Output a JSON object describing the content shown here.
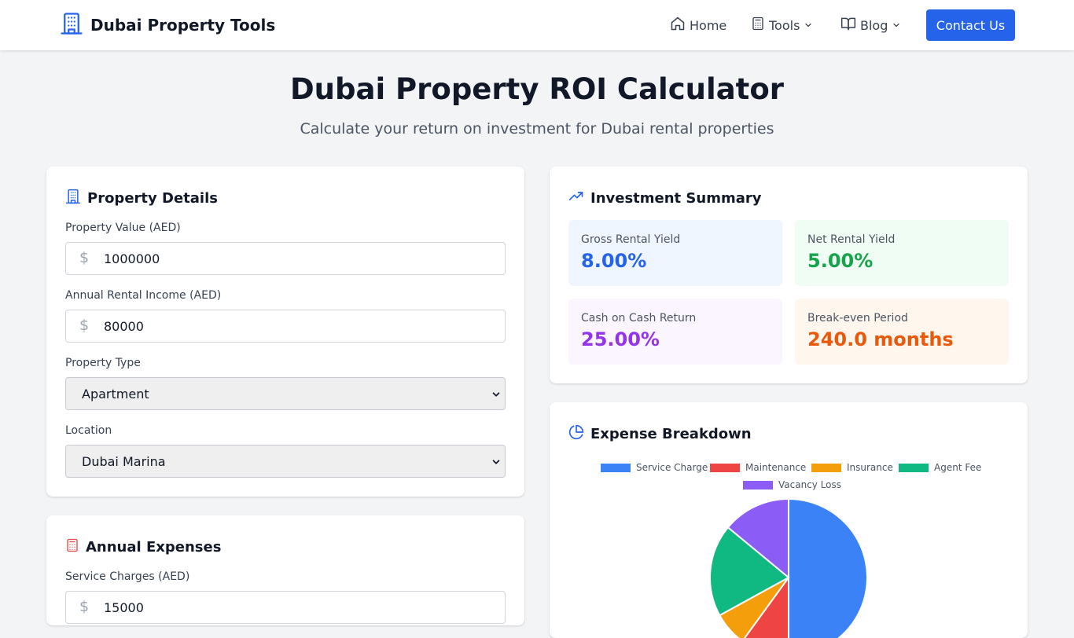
{
  "header": {
    "brand": "Dubai Property Tools",
    "nav": {
      "home": "Home",
      "tools": "Tools",
      "blog": "Blog"
    },
    "contact_label": "Contact Us"
  },
  "hero": {
    "title": "Dubai Property ROI Calculator",
    "subtitle": "Calculate your return on investment for Dubai rental properties"
  },
  "property_details": {
    "title": "Property Details",
    "property_value": {
      "label": "Property Value (AED)",
      "value": "1000000"
    },
    "rental_income": {
      "label": "Annual Rental Income (AED)",
      "value": "80000"
    },
    "property_type": {
      "label": "Property Type",
      "selected": "Apartment"
    },
    "location": {
      "label": "Location",
      "selected": "Dubai Marina"
    }
  },
  "annual_expenses": {
    "title": "Annual Expenses",
    "service_charges": {
      "label": "Service Charges (AED)",
      "value": "15000"
    }
  },
  "summary": {
    "title": "Investment Summary",
    "gross": {
      "label": "Gross Rental Yield",
      "value": "8.00%"
    },
    "net": {
      "label": "Net Rental Yield",
      "value": "5.00%"
    },
    "cash": {
      "label": "Cash on Cash Return",
      "value": "25.00%"
    },
    "breakeven": {
      "label": "Break-even Period",
      "value": "240.0 months"
    }
  },
  "expense_breakdown": {
    "title": "Expense Breakdown"
  },
  "colors": {
    "primary": "#2563eb",
    "service_charge": "#3b82f6",
    "maintenance": "#ef4444",
    "insurance": "#f59e0b",
    "agent_fee": "#10b981",
    "vacancy_loss": "#8b5cf6"
  },
  "chart_data": {
    "type": "pie",
    "title": "",
    "labels": [
      "Service Charge",
      "Maintenance",
      "Insurance",
      "Agent Fee",
      "Vacancy Loss"
    ],
    "values": [
      50,
      10,
      7,
      19,
      14
    ],
    "colors": [
      "#3b82f6",
      "#ef4444",
      "#f59e0b",
      "#10b981",
      "#8b5cf6"
    ],
    "legend": "top"
  }
}
